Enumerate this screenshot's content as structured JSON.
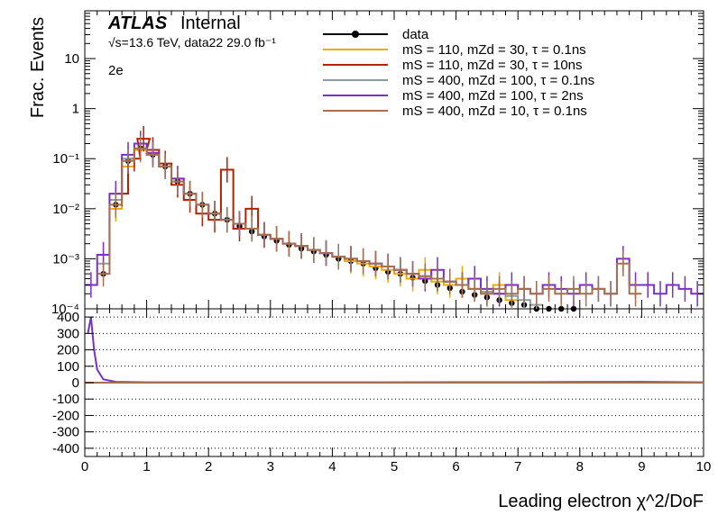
{
  "experiment": {
    "name": "ATLAS",
    "status": "Internal"
  },
  "info_line": "√s=13.6 TeV, data22 29.0 fb⁻¹",
  "channel": "2e",
  "colors": {
    "data": "#000000",
    "s1": "#f2a900",
    "s2": "#b22200",
    "s3": "#8a9ea0",
    "s4": "#7a2fc9",
    "s5": "#a5704f"
  },
  "chart_data": [
    {
      "type": "line",
      "title": "",
      "ylabel": "Frac. Events",
      "xlabel": "Leading electron χ^2/DoF",
      "xlim": [
        0,
        10
      ],
      "ylim": [
        0.0001,
        90
      ],
      "yscale": "log",
      "y_ticks": [
        "10⁻⁴",
        "10⁻³",
        "10⁻²",
        "10⁻¹",
        "1",
        "10"
      ],
      "legend_position": "top-center",
      "series": [
        {
          "name": "data",
          "style": "markers",
          "x": [
            0.3,
            0.5,
            0.7,
            0.9,
            1.1,
            1.3,
            1.5,
            1.7,
            1.9,
            2.1,
            2.3,
            2.5,
            2.7,
            2.9,
            3.1,
            3.3,
            3.5,
            3.7,
            3.9,
            4.1,
            4.3,
            4.5,
            4.7,
            4.9,
            5.1,
            5.3,
            5.5,
            5.7,
            5.9,
            6.1,
            6.3,
            6.5,
            6.7,
            6.9,
            7.1,
            7.3,
            7.5,
            7.7,
            7.9
          ],
          "y": [
            0.0005,
            0.012,
            0.09,
            0.16,
            0.12,
            0.07,
            0.035,
            0.02,
            0.012,
            0.008,
            0.006,
            0.0045,
            0.0035,
            0.0028,
            0.0023,
            0.0019,
            0.0016,
            0.0014,
            0.0012,
            0.001,
            0.0009,
            0.0008,
            0.00065,
            0.00055,
            0.0005,
            0.00042,
            0.00036,
            0.0003,
            0.00026,
            0.00022,
            0.00019,
            0.00017,
            0.00015,
            0.00013,
            0.00012,
            0.0001,
            0.0001,
            0.0001,
            0.0001
          ]
        },
        {
          "name": "mS = 110, mZd = 30, τ = 0.1ns",
          "x": [
            0.5,
            0.7,
            0.9,
            1.1,
            1.3,
            1.5,
            1.7,
            1.9,
            2.1,
            2.3,
            2.5,
            2.7,
            2.9,
            3.1,
            3.3,
            3.5,
            3.7,
            3.9,
            4.1,
            4.3,
            4.5,
            4.7,
            4.9,
            5.1,
            5.3,
            5.5,
            5.7,
            5.9,
            6.1,
            6.3,
            6.5,
            6.7,
            6.9
          ],
          "y": [
            0.01,
            0.07,
            0.15,
            0.13,
            0.07,
            0.04,
            0.02,
            0.012,
            0.008,
            0.006,
            0.005,
            0.004,
            0.003,
            0.0025,
            0.002,
            0.0018,
            0.0015,
            0.0013,
            0.0011,
            0.0009,
            0.0008,
            0.0007,
            0.0006,
            0.0005,
            0.0004,
            0.0006,
            0.00035,
            0.0003,
            0.0004,
            0.00025,
            0.0002,
            0.0003,
            0.00015
          ]
        },
        {
          "name": "mS = 110, mZd = 30, τ = 10ns",
          "x": [
            0.6,
            0.8,
            0.95,
            1.1,
            1.3,
            1.5,
            1.7,
            1.9,
            2.1,
            2.3,
            2.5,
            2.7,
            2.9
          ],
          "y": [
            0.02,
            0.1,
            0.25,
            0.15,
            0.08,
            0.03,
            0.015,
            0.008,
            0.006,
            0.06,
            0.004,
            0.01,
            0.003
          ]
        },
        {
          "name": "mS = 400, mZd = 100, τ = 0.1ns",
          "x": [
            0.3,
            0.5,
            0.7,
            0.9,
            1.1,
            1.3,
            1.5,
            1.7,
            1.9,
            2.1,
            2.3,
            2.5,
            2.7,
            2.9,
            3.1,
            3.3,
            3.5,
            3.7,
            3.9,
            4.1,
            4.3,
            4.5,
            4.7,
            4.9,
            5.1,
            5.3,
            5.5,
            5.7,
            5.9,
            6.1,
            6.3,
            6.5,
            6.7,
            6.9,
            7.1,
            7.3
          ],
          "y": [
            0.0008,
            0.015,
            0.1,
            0.16,
            0.12,
            0.07,
            0.035,
            0.02,
            0.012,
            0.008,
            0.006,
            0.005,
            0.004,
            0.003,
            0.0025,
            0.002,
            0.0018,
            0.0015,
            0.0013,
            0.0011,
            0.001,
            0.0009,
            0.0008,
            0.0007,
            0.0006,
            0.0005,
            0.00045,
            0.0004,
            0.00035,
            0.0003,
            0.00025,
            0.00022,
            0.0002,
            0.00018,
            0.00015,
            0.00012
          ]
        },
        {
          "name": "mS = 400, mZd = 100, τ = 2ns",
          "x": [
            0.1,
            0.3,
            0.5,
            0.7,
            0.9,
            1.1,
            1.3,
            1.5,
            1.7,
            1.9,
            2.1,
            2.3,
            2.5,
            2.7,
            2.9,
            3.1,
            3.3,
            3.5,
            3.7,
            3.9,
            4.1,
            4.3,
            4.5,
            4.7,
            4.9,
            5.1,
            5.3,
            5.5,
            5.7,
            5.9,
            6.1,
            6.3,
            6.5,
            6.7,
            6.9,
            7.1,
            7.3,
            7.5,
            7.7,
            7.9,
            8.1,
            8.3,
            8.5,
            8.7,
            8.9,
            9.1,
            9.3,
            9.5,
            9.7,
            9.9
          ],
          "y": [
            0.0003,
            0.0012,
            0.02,
            0.12,
            0.2,
            0.13,
            0.07,
            0.04,
            0.02,
            0.012,
            0.008,
            0.006,
            0.005,
            0.004,
            0.003,
            0.0025,
            0.002,
            0.0018,
            0.0015,
            0.0013,
            0.0011,
            0.001,
            0.0009,
            0.0008,
            0.0007,
            0.0006,
            0.0005,
            0.0004,
            0.0006,
            0.00035,
            0.0003,
            0.0004,
            0.00025,
            0.0002,
            0.0003,
            0.00025,
            0.0002,
            0.0003,
            0.00025,
            0.0002,
            0.0003,
            0.00025,
            0.0002,
            0.001,
            0.0003,
            0.0003,
            0.0002,
            0.0003,
            0.00025,
            0.0002
          ]
        },
        {
          "name": "mS = 400, mZd = 10, τ = 0.1ns",
          "x": [
            0.3,
            0.5,
            0.7,
            0.9,
            1.1,
            1.3,
            1.5,
            1.7,
            1.9,
            2.1,
            2.3,
            2.5,
            2.7,
            2.9,
            3.1,
            3.3,
            3.5,
            3.7,
            3.9,
            4.1,
            4.3,
            4.5,
            4.7,
            4.9,
            5.1,
            5.3,
            5.5,
            5.7,
            5.9,
            6.1,
            6.3,
            6.5,
            6.7,
            6.9,
            7.1,
            7.3,
            7.5,
            7.7,
            7.9,
            8.1,
            8.3,
            8.5,
            8.7,
            8.9
          ],
          "y": [
            0.0005,
            0.012,
            0.09,
            0.16,
            0.12,
            0.07,
            0.035,
            0.02,
            0.012,
            0.008,
            0.006,
            0.005,
            0.004,
            0.003,
            0.0025,
            0.002,
            0.0018,
            0.0015,
            0.0013,
            0.0011,
            0.001,
            0.0009,
            0.0008,
            0.0007,
            0.0006,
            0.0005,
            0.00045,
            0.0004,
            0.00035,
            0.0003,
            0.00025,
            0.0002,
            0.00025,
            0.0002,
            0.00025,
            0.0002,
            0.00025,
            0.0002,
            0.00025,
            0.0002,
            0.00025,
            0.0002,
            0.0008,
            0.0002
          ]
        }
      ]
    },
    {
      "type": "line",
      "title": "",
      "ylabel": "",
      "xlabel": "Leading electron χ^2/DoF",
      "xlim": [
        0,
        10
      ],
      "ylim": [
        -450,
        450
      ],
      "y_ticks": [
        -400,
        -300,
        -200,
        -100,
        0,
        100,
        200,
        300,
        400
      ],
      "x_ticks": [
        0,
        1,
        2,
        3,
        4,
        5,
        6,
        7,
        8,
        9,
        10
      ],
      "grid": "horizontal dotted",
      "series": [
        {
          "name": "mS = 400, mZd = 100, τ = 2ns",
          "x": [
            0.05,
            0.1,
            0.15,
            0.2,
            0.3,
            0.5,
            1,
            2,
            3,
            4,
            5,
            6,
            7,
            8,
            9,
            10
          ],
          "y": [
            300,
            400,
            200,
            80,
            20,
            5,
            2,
            2,
            2,
            2,
            2,
            3,
            3,
            4,
            5,
            2
          ]
        }
      ]
    }
  ]
}
